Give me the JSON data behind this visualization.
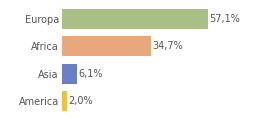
{
  "categories": [
    "America",
    "Asia",
    "Africa",
    "Europa"
  ],
  "values": [
    2.0,
    6.1,
    34.7,
    57.1
  ],
  "bar_colors": [
    "#f0c040",
    "#6b7fc4",
    "#e8a87c",
    "#a8bf85"
  ],
  "labels": [
    "2,0%",
    "6,1%",
    "34,7%",
    "57,1%"
  ],
  "background_color": "#ffffff",
  "xlim": [
    0,
    72
  ],
  "bar_height": 0.72,
  "label_fontsize": 7.0,
  "tick_fontsize": 7.0,
  "grid_color": "#dddddd",
  "label_color": "#555555",
  "tick_color": "#555555"
}
